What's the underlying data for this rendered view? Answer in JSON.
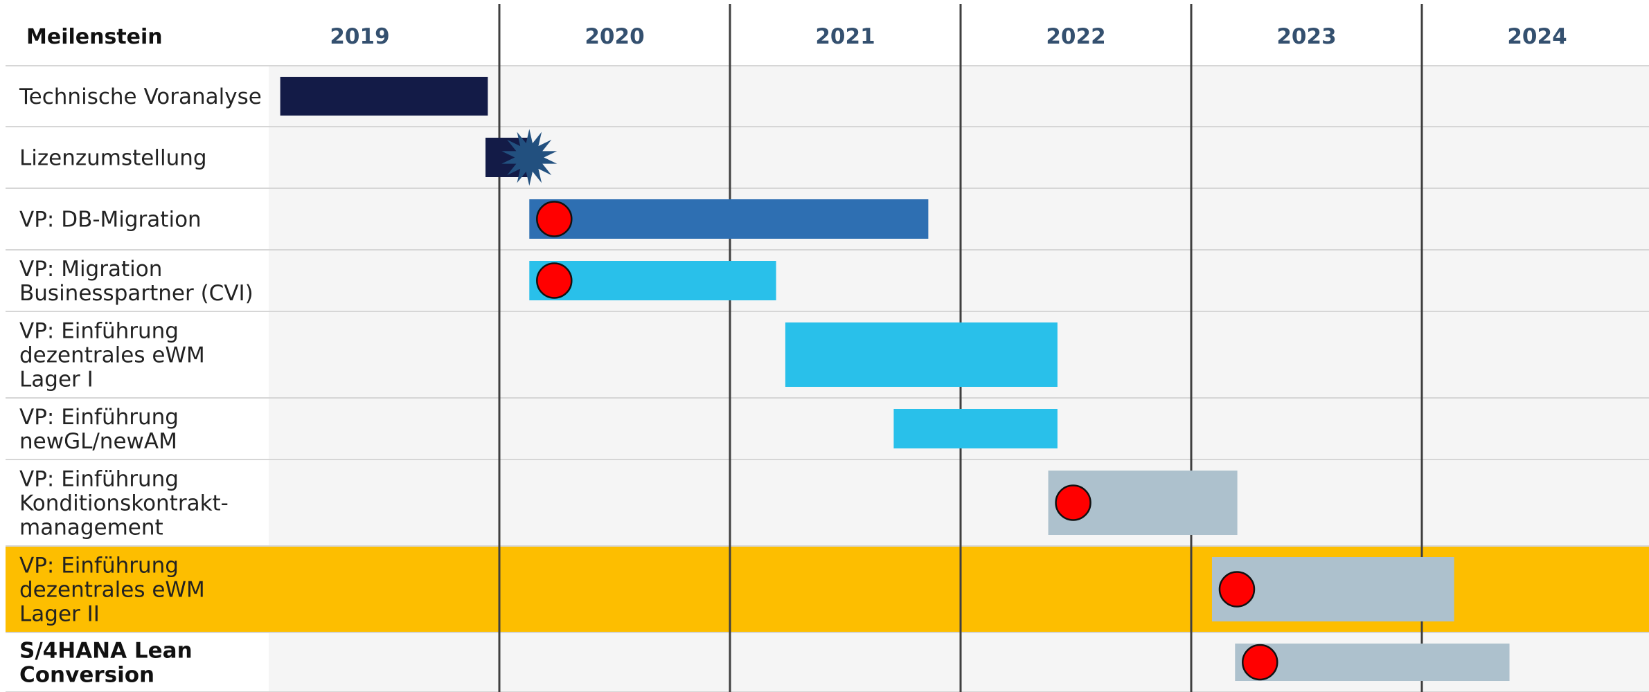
{
  "chart_data": {
    "type": "gantt",
    "header_label": "Meilenstein",
    "years": [
      "2019",
      "2020",
      "2021",
      "2022",
      "2023",
      "2024"
    ],
    "x_unit": "year",
    "x_range": [
      2019,
      2025
    ],
    "colors": {
      "dark_navy": "#131b47",
      "blue": "#2e6fb2",
      "light_blue": "#29c0ea",
      "grey": "#adc1cd",
      "highlight": "#fdbe00",
      "milestone_dot": "#ff0000",
      "star": "#22507f"
    },
    "rows": [
      {
        "label": [
          "Technische Voranalyse"
        ],
        "bold": false,
        "highlight": false,
        "start": 2019.05,
        "end": 2019.95,
        "color": "dark_navy",
        "milestone": "none"
      },
      {
        "label": [
          "Lizenzumstellung"
        ],
        "bold": false,
        "highlight": false,
        "start": 2019.94,
        "end": 2020.13,
        "color": "dark_navy",
        "milestone": "star"
      },
      {
        "label": [
          "VP: DB-Migration"
        ],
        "bold": false,
        "highlight": false,
        "start": 2020.13,
        "end": 2021.86,
        "color": "blue",
        "milestone": "dot"
      },
      {
        "label": [
          "VP: Migration",
          "Businesspartner (CVI)"
        ],
        "bold": false,
        "highlight": false,
        "start": 2020.13,
        "end": 2021.2,
        "color": "light_blue",
        "milestone": "dot"
      },
      {
        "label": [
          "VP: Einführung",
          "dezentrales eWM",
          "Lager I"
        ],
        "bold": false,
        "highlight": false,
        "start": 2021.24,
        "end": 2022.42,
        "color": "light_blue",
        "milestone": "none"
      },
      {
        "label": [
          "VP: Einführung",
          "newGL/newAM"
        ],
        "bold": false,
        "highlight": false,
        "start": 2021.71,
        "end": 2022.42,
        "color": "light_blue",
        "milestone": "none"
      },
      {
        "label": [
          "VP: Einführung",
          "Konditionskontrakt-",
          "management"
        ],
        "bold": false,
        "highlight": false,
        "start": 2022.38,
        "end": 2023.2,
        "color": "grey",
        "milestone": "dot"
      },
      {
        "label": [
          "VP: Einführung",
          "dezentrales eWM",
          "Lager II"
        ],
        "bold": false,
        "highlight": true,
        "start": 2023.09,
        "end": 2024.14,
        "color": "grey",
        "milestone": "dot"
      },
      {
        "label": [
          "S/4HANA Lean",
          "Conversion"
        ],
        "bold": true,
        "highlight": false,
        "start": 2023.19,
        "end": 2024.38,
        "color": "grey",
        "milestone": "dot"
      }
    ]
  }
}
